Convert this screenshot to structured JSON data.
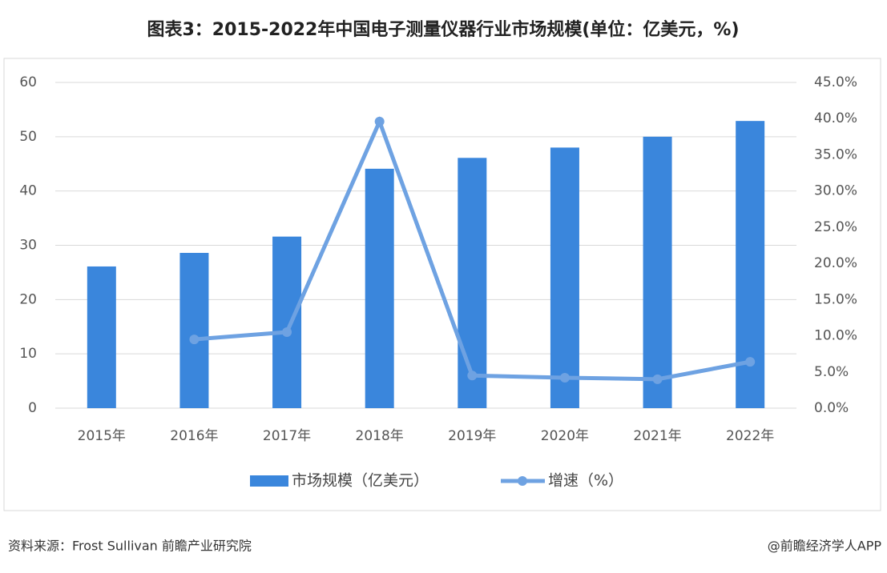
{
  "chart_data": {
    "type": "bar-line",
    "title": "图表3：2015-2022年中国电子测量仪器行业市场规模(单位：亿美元，%)",
    "categories": [
      "2015年",
      "2016年",
      "2017年",
      "2018年",
      "2019年",
      "2020年",
      "2021年",
      "2022年"
    ],
    "series": [
      {
        "name": "市场规模（亿美元）",
        "type": "bar",
        "color": "#3a86dc",
        "values": [
          26.1,
          28.6,
          31.6,
          44.1,
          46.1,
          48.0,
          50.0,
          52.9
        ]
      },
      {
        "name": "增速（%）",
        "type": "line",
        "axis": "y2",
        "color": "#6ea2e2",
        "values": [
          null,
          9.5,
          10.5,
          39.6,
          4.5,
          4.2,
          4.0,
          6.4
        ]
      }
    ],
    "ylim": [
      0,
      60
    ],
    "yticks": [
      0,
      10,
      20,
      30,
      40,
      50,
      60
    ],
    "y2lim": [
      0,
      45
    ],
    "y2ticks": [
      {
        "value": 0,
        "label": "0.0%"
      },
      {
        "value": 5,
        "label": "5.0%"
      },
      {
        "value": 10,
        "label": "10.0%"
      },
      {
        "value": 15,
        "label": "15.0%"
      },
      {
        "value": 20,
        "label": "20.0%"
      },
      {
        "value": 25,
        "label": "25.0%"
      },
      {
        "value": 30,
        "label": "30.0%"
      },
      {
        "value": 35,
        "label": "35.0%"
      },
      {
        "value": 40,
        "label": "40.0%"
      },
      {
        "value": 45,
        "label": "45.0%"
      }
    ],
    "grid": true,
    "legend": "bottom",
    "source": "资料来源：Frost Sullivan 前瞻产业研究院",
    "credit": "@前瞻经济学人APP"
  }
}
